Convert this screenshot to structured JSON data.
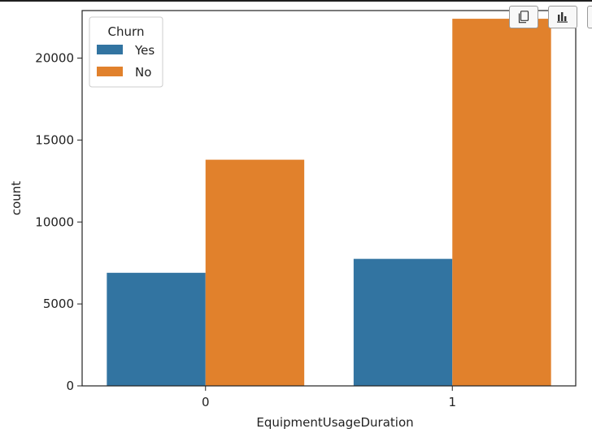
{
  "toolbar": {
    "buttons": [
      {
        "name": "copy-icon"
      },
      {
        "name": "bar-chart-icon"
      }
    ]
  },
  "chart_data": {
    "type": "bar",
    "categories": [
      "0",
      "1"
    ],
    "series": [
      {
        "name": "Yes",
        "values": [
          6900,
          7750
        ],
        "color": "#3274a1"
      },
      {
        "name": "No",
        "values": [
          13800,
          22400
        ],
        "color": "#e1812c"
      }
    ],
    "legend": {
      "title": "Churn",
      "placement": "top-left"
    },
    "xlabel": "EquipmentUsageDuration",
    "ylabel": "count",
    "ylim": [
      0,
      22900
    ],
    "yticks": [
      0,
      5000,
      10000,
      15000,
      20000
    ],
    "ytick_labels": [
      "0",
      "5000",
      "10000",
      "15000",
      "20000"
    ],
    "grid": false
  }
}
